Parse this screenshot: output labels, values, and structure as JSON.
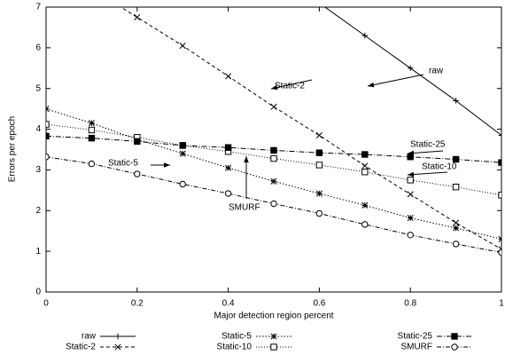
{
  "chart_data": {
    "type": "line",
    "xlabel": "Major detection region percent",
    "ylabel": "Errors per epoch",
    "x": [
      0,
      0.1,
      0.2,
      0.3,
      0.4,
      0.5,
      0.6,
      0.7,
      0.8,
      0.9,
      1
    ],
    "xlim": [
      0,
      1
    ],
    "xticks": [
      0,
      0.2,
      0.4,
      0.6,
      0.8,
      1
    ],
    "ylim": [
      0,
      7
    ],
    "yticks": [
      0,
      1,
      2,
      3,
      4,
      5,
      6,
      7
    ],
    "series": [
      {
        "name": "raw",
        "color": "#000000",
        "values": [
          null,
          null,
          null,
          null,
          null,
          null,
          7.1,
          6.3,
          5.5,
          4.7,
          3.85
        ]
      },
      {
        "name": "Static-2",
        "color": "#000000",
        "values": [
          null,
          7.45,
          6.75,
          6.05,
          5.3,
          4.55,
          3.85,
          3.1,
          2.4,
          1.7,
          1.05
        ]
      },
      {
        "name": "Static-5",
        "color": "#000000",
        "values": [
          4.5,
          4.15,
          3.75,
          3.4,
          3.05,
          2.72,
          2.42,
          2.13,
          1.82,
          1.57,
          1.3
        ]
      },
      {
        "name": "Static-10",
        "color": "#000000",
        "values": [
          4.12,
          3.98,
          3.8,
          3.6,
          3.45,
          3.28,
          3.12,
          2.95,
          2.75,
          2.58,
          2.38
        ]
      },
      {
        "name": "Static-25",
        "color": "#000000",
        "values": [
          3.83,
          3.78,
          3.7,
          3.6,
          3.55,
          3.48,
          3.42,
          3.38,
          3.32,
          3.26,
          3.18
        ]
      },
      {
        "name": "SMURF",
        "color": "#000000",
        "values": [
          3.32,
          3.15,
          2.9,
          2.65,
          2.42,
          2.17,
          1.93,
          1.66,
          1.4,
          1.18,
          0.97
        ]
      }
    ],
    "annotations": [
      "raw",
      "Static-2",
      "Static-25",
      "Static-10",
      "Static-5",
      "SMURF"
    ]
  }
}
